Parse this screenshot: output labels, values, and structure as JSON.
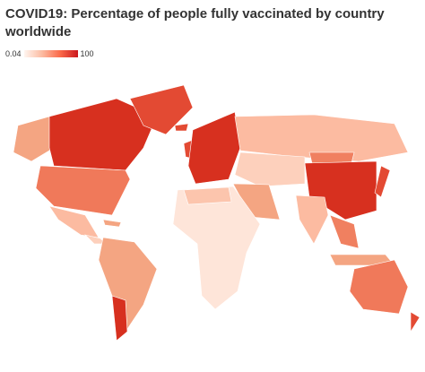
{
  "title": "COVID19: Percentage of people fully vaccinated by country worldwide",
  "legend": {
    "min": 0.04,
    "max": 100,
    "colors": [
      "#fff5f0",
      "#fcbba1",
      "#fb6a4a",
      "#cb181d"
    ]
  }
}
